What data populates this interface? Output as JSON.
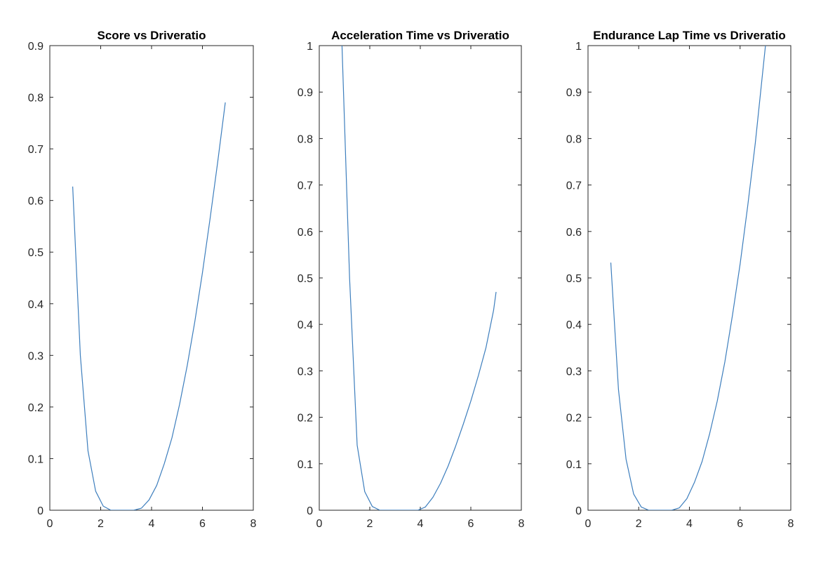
{
  "chart_data": [
    {
      "type": "line",
      "title": "Score vs Driveratio",
      "xlim": [
        0,
        8
      ],
      "ylim": [
        0,
        0.9
      ],
      "xticks": [
        0,
        2,
        4,
        6,
        8
      ],
      "yticks": [
        0,
        0.1,
        0.2,
        0.3,
        0.4,
        0.5,
        0.6,
        0.7,
        0.8,
        0.9
      ],
      "grid": false,
      "series": [
        {
          "color": "#3D7EBD",
          "x": [
            0.9,
            1.2,
            1.5,
            1.8,
            2.1,
            2.4,
            2.7,
            3.0,
            3.3,
            3.6,
            3.9,
            4.2,
            4.5,
            4.8,
            5.1,
            5.4,
            5.7,
            6.0,
            6.3,
            6.6,
            6.9
          ],
          "y": [
            0.627,
            0.3,
            0.115,
            0.037,
            0.008,
            0.0,
            0.0,
            0.0,
            0.0,
            0.004,
            0.02,
            0.048,
            0.09,
            0.14,
            0.205,
            0.28,
            0.365,
            0.46,
            0.565,
            0.675,
            0.79
          ]
        }
      ]
    },
    {
      "type": "line",
      "title": "Acceleration Time vs Driveratio",
      "xlim": [
        0,
        8
      ],
      "ylim": [
        0,
        1
      ],
      "xticks": [
        0,
        2,
        4,
        6,
        8
      ],
      "yticks": [
        0,
        0.1,
        0.2,
        0.3,
        0.4,
        0.5,
        0.6,
        0.7,
        0.8,
        0.9,
        1
      ],
      "grid": false,
      "series": [
        {
          "color": "#3D7EBD",
          "x": [
            0.9,
            1.2,
            1.5,
            1.8,
            2.1,
            2.4,
            2.7,
            3.0,
            3.3,
            3.6,
            3.9,
            4.2,
            4.5,
            4.8,
            5.1,
            5.4,
            5.7,
            6.0,
            6.3,
            6.6,
            6.9,
            7.0
          ],
          "y": [
            1.0,
            0.5,
            0.14,
            0.04,
            0.008,
            0.0,
            0.0,
            0.0,
            0.0,
            0.0,
            0.0,
            0.007,
            0.028,
            0.058,
            0.095,
            0.138,
            0.185,
            0.235,
            0.29,
            0.35,
            0.43,
            0.47
          ]
        }
      ]
    },
    {
      "type": "line",
      "title": "Endurance Lap Time vs Driveratio",
      "xlim": [
        0,
        8
      ],
      "ylim": [
        0,
        1
      ],
      "xticks": [
        0,
        2,
        4,
        6,
        8
      ],
      "yticks": [
        0,
        0.1,
        0.2,
        0.3,
        0.4,
        0.5,
        0.6,
        0.7,
        0.8,
        0.9,
        1
      ],
      "grid": false,
      "series": [
        {
          "color": "#3D7EBD",
          "x": [
            0.9,
            1.2,
            1.5,
            1.8,
            2.1,
            2.4,
            2.7,
            3.0,
            3.3,
            3.6,
            3.9,
            4.2,
            4.5,
            4.8,
            5.1,
            5.4,
            5.7,
            6.0,
            6.3,
            6.6,
            7.0
          ],
          "y": [
            0.533,
            0.26,
            0.11,
            0.035,
            0.007,
            0.0,
            0.0,
            0.0,
            0.0,
            0.005,
            0.025,
            0.06,
            0.105,
            0.165,
            0.235,
            0.32,
            0.42,
            0.53,
            0.655,
            0.79,
            1.0
          ]
        }
      ]
    }
  ]
}
